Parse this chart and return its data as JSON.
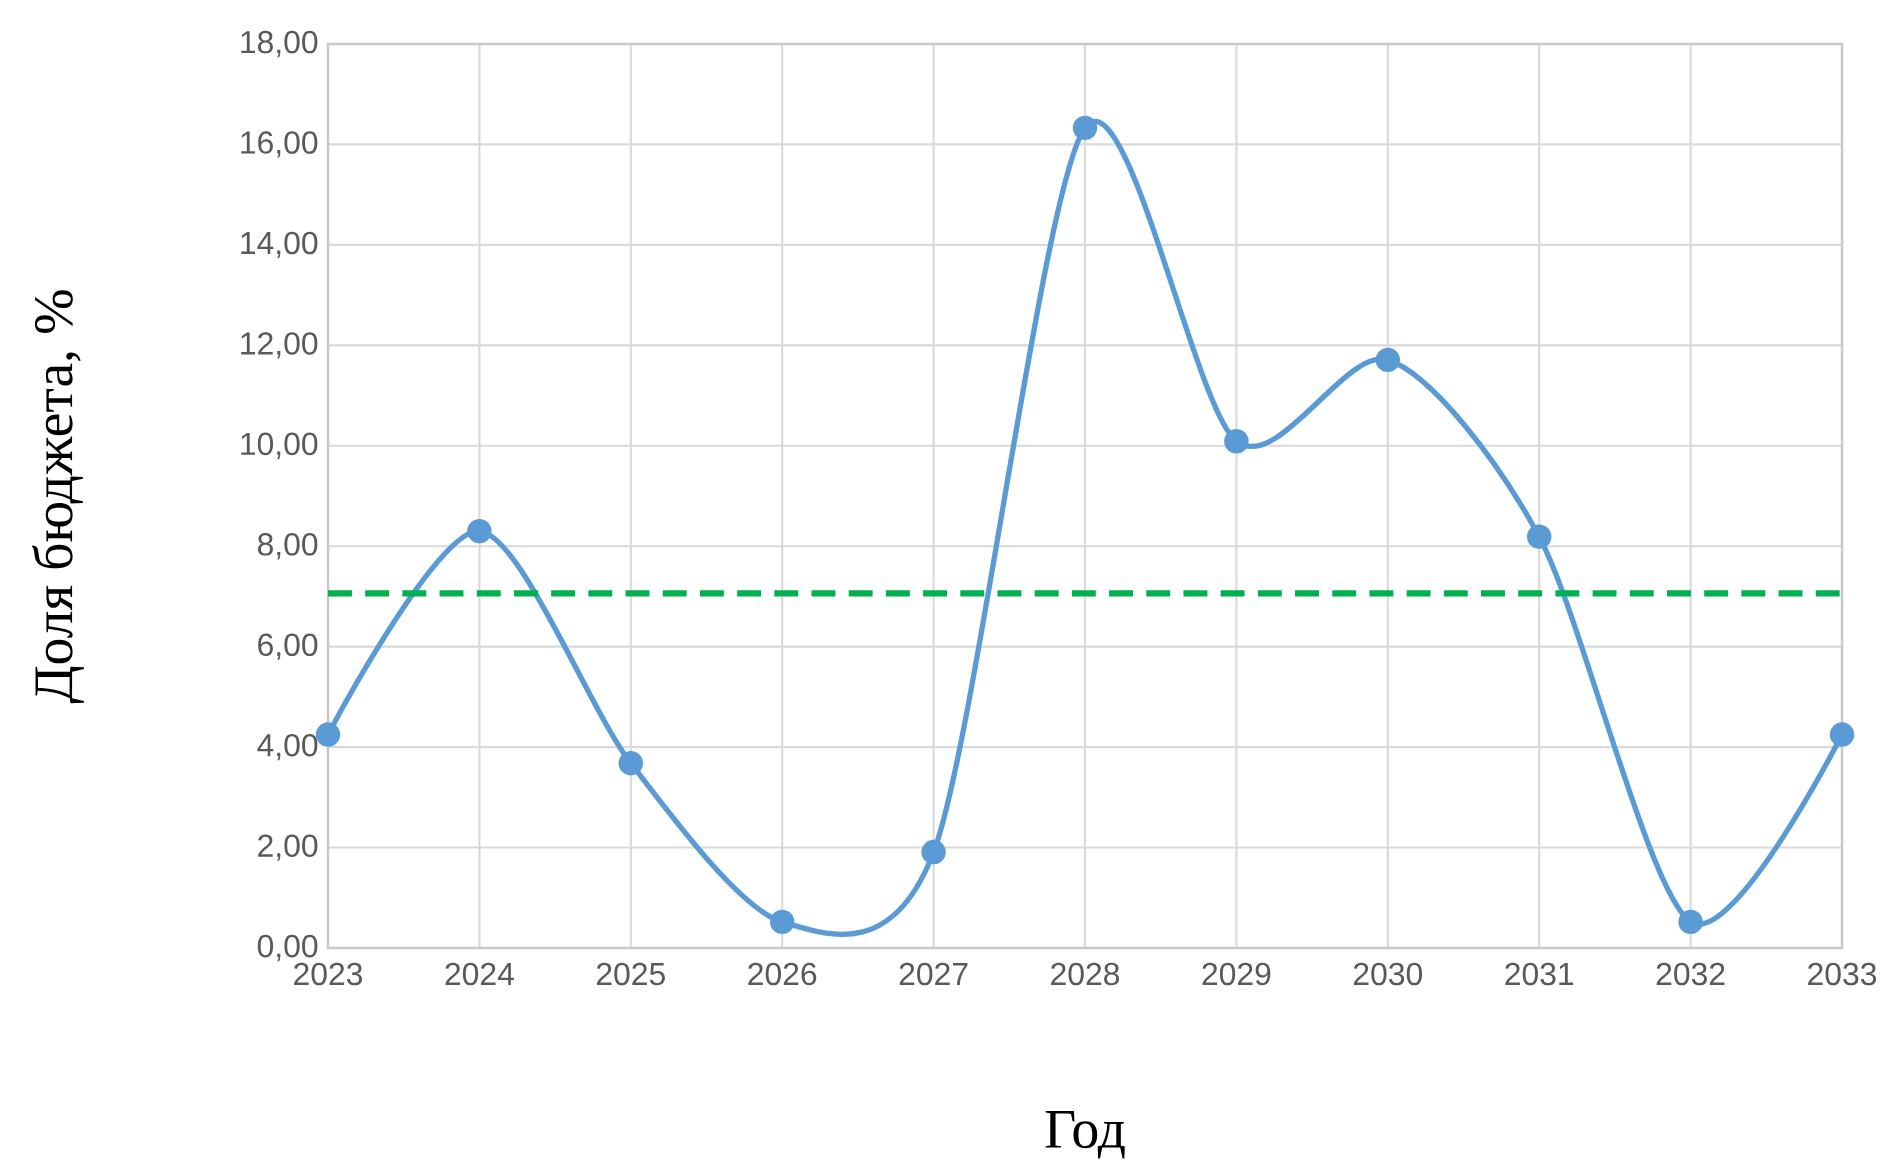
{
  "chart_data": {
    "type": "line",
    "xlabel": "Год",
    "ylabel": "Доля бюджета, %",
    "x": [
      2023,
      2024,
      2025,
      2026,
      2027,
      2028,
      2029,
      2030,
      2031,
      2032,
      2033
    ],
    "series": [
      {
        "color": "#5b9bd5",
        "values": [
          4.25,
          8.3,
          3.68,
          0.52,
          1.91,
          16.33,
          10.09,
          11.71,
          8.19,
          0.52,
          4.25
        ]
      }
    ],
    "xlim": [
      2023,
      2033
    ],
    "xticks": [
      2023,
      2024,
      2025,
      2026,
      2027,
      2028,
      2029,
      2030,
      2031,
      2032,
      2033
    ],
    "ylim": [
      0,
      18
    ],
    "yticks": [
      {
        "value": 0,
        "label": "0,00"
      },
      {
        "value": 2,
        "label": "2,00"
      },
      {
        "value": 4,
        "label": "4,00"
      },
      {
        "value": 6,
        "label": "6,00"
      },
      {
        "value": 8,
        "label": "8,00"
      },
      {
        "value": 10,
        "label": "10,00"
      },
      {
        "value": 12,
        "label": "12,00"
      },
      {
        "value": 14,
        "label": "14,00"
      },
      {
        "value": 16,
        "label": "16,00"
      },
      {
        "value": 18,
        "label": "18,00"
      }
    ],
    "ref_lines": [
      {
        "axis": "y",
        "value": 7.06,
        "color": "#00b050",
        "line_style": "dashed"
      }
    ],
    "grid": true,
    "marker": "circle",
    "line_style": "solid"
  }
}
